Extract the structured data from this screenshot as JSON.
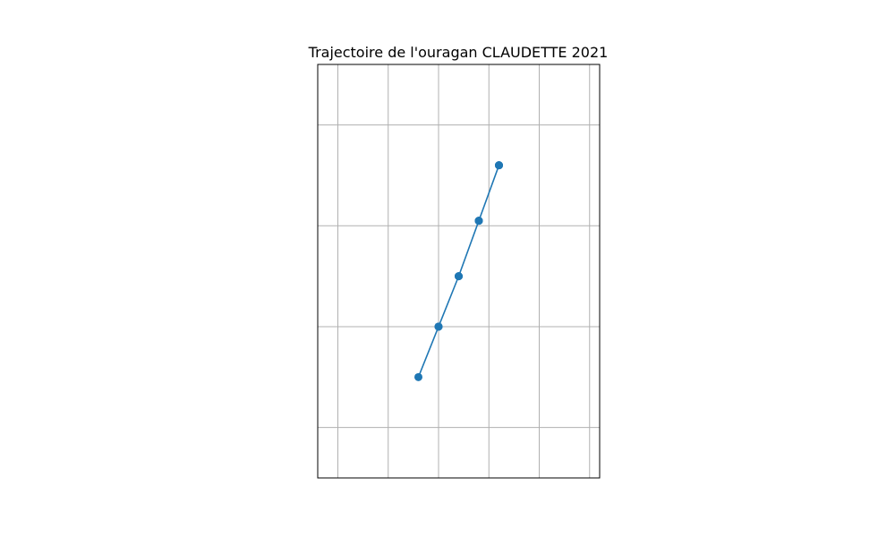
{
  "chart_data": {
    "type": "line",
    "title": "Trajectoire de l'ouragan CLAUDETTE 2021",
    "xlabel": "",
    "ylabel": "",
    "grid": true,
    "xlim": [
      -0.4,
      5.2
    ],
    "ylim": [
      -0.5,
      3.6
    ],
    "x_grid": [
      0,
      1,
      2,
      3,
      4,
      5
    ],
    "y_grid": [
      0,
      1,
      2,
      3
    ],
    "series": [
      {
        "x": [
          2.0,
          2.4,
          2.8,
          3.2,
          3.2,
          2.8,
          2.4,
          2.0,
          1.6,
          2.0,
          2.4,
          2.8,
          3.2
        ],
        "y": [
          1.0,
          1.5,
          2.05,
          2.6,
          2.6,
          2.05,
          1.5,
          1.0,
          0.5,
          1.0,
          1.5,
          2.05,
          2.6
        ]
      }
    ]
  },
  "colors": {
    "series": "#1f77b4",
    "grid": "#b0b0b0",
    "axes": "#000000",
    "background": "#ffffff"
  }
}
